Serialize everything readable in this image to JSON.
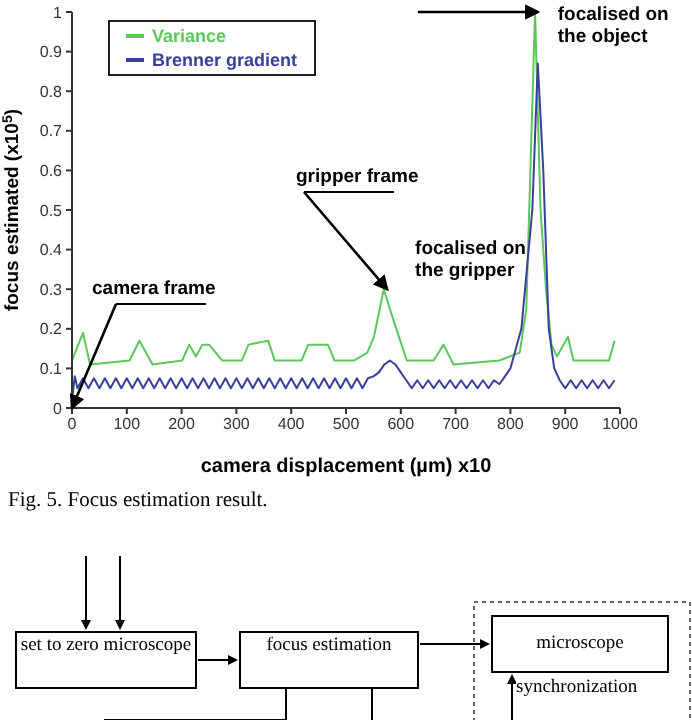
{
  "chart_data": {
    "type": "line",
    "xlabel": "camera displacement (µm) x10",
    "ylabel": "focus estimated (x10$^{5}$)",
    "xlim": [
      0,
      1000
    ],
    "xticks": [
      0,
      100,
      200,
      300,
      400,
      500,
      600,
      700,
      800,
      900,
      1000
    ],
    "ylim": [
      0,
      1
    ],
    "yticks": [
      0,
      0.1,
      0.2,
      0.3,
      0.4,
      0.5,
      0.6,
      0.7,
      0.8,
      0.9,
      1
    ],
    "legend": "top left",
    "marker": "none",
    "line_style": "solid",
    "series": [
      {
        "name": "Variance",
        "color": "#5cc85c",
        "x": [
          0,
          20,
          33,
          105,
          123,
          147,
          201,
          214,
          226,
          238,
          250,
          274,
          310,
          322,
          358,
          370,
          419,
          431,
          467,
          479,
          515,
          539,
          551,
          569,
          587,
          611,
          660,
          678,
          696,
          780,
          817,
          829,
          845,
          855,
          865,
          875,
          885,
          905,
          915,
          980,
          990
        ],
        "values": [
          0.12,
          0.19,
          0.11,
          0.12,
          0.17,
          0.11,
          0.12,
          0.16,
          0.13,
          0.16,
          0.16,
          0.12,
          0.12,
          0.16,
          0.17,
          0.12,
          0.12,
          0.16,
          0.16,
          0.12,
          0.12,
          0.14,
          0.18,
          0.3,
          0.22,
          0.12,
          0.12,
          0.16,
          0.11,
          0.12,
          0.14,
          0.25,
          1,
          0.5,
          0.3,
          0.16,
          0.13,
          0.18,
          0.12,
          0.12,
          0.17
        ]
      },
      {
        "name": "Brenner gradient",
        "color": "#3a3f9a",
        "x": [
          0,
          5,
          10,
          20,
          30,
          40,
          50,
          60,
          70,
          80,
          90,
          100,
          110,
          120,
          130,
          140,
          150,
          160,
          170,
          180,
          190,
          200,
          210,
          220,
          230,
          240,
          250,
          260,
          270,
          280,
          290,
          300,
          310,
          320,
          330,
          340,
          350,
          360,
          370,
          380,
          390,
          400,
          410,
          420,
          430,
          440,
          450,
          460,
          470,
          480,
          490,
          500,
          510,
          520,
          530,
          540,
          550,
          560,
          570,
          580,
          590,
          600,
          610,
          620,
          630,
          640,
          650,
          660,
          670,
          680,
          690,
          700,
          710,
          720,
          730,
          740,
          750,
          760,
          770,
          780,
          790,
          800,
          820,
          840,
          850,
          860,
          870,
          880,
          890,
          900,
          910,
          920,
          930,
          940,
          950,
          960,
          970,
          980,
          990
        ],
        "values": [
          0.02,
          0.08,
          0.05,
          0.075,
          0.05,
          0.075,
          0.05,
          0.075,
          0.05,
          0.075,
          0.05,
          0.075,
          0.05,
          0.075,
          0.05,
          0.075,
          0.05,
          0.075,
          0.05,
          0.075,
          0.05,
          0.075,
          0.05,
          0.075,
          0.05,
          0.075,
          0.05,
          0.075,
          0.05,
          0.075,
          0.05,
          0.075,
          0.05,
          0.075,
          0.05,
          0.075,
          0.05,
          0.075,
          0.05,
          0.075,
          0.05,
          0.075,
          0.05,
          0.075,
          0.05,
          0.075,
          0.05,
          0.075,
          0.05,
          0.075,
          0.05,
          0.075,
          0.05,
          0.075,
          0.05,
          0.075,
          0.08,
          0.09,
          0.11,
          0.12,
          0.11,
          0.09,
          0.07,
          0.05,
          0.07,
          0.05,
          0.07,
          0.05,
          0.07,
          0.05,
          0.07,
          0.05,
          0.07,
          0.05,
          0.07,
          0.05,
          0.07,
          0.05,
          0.07,
          0.06,
          0.08,
          0.1,
          0.2,
          0.5,
          0.87,
          0.6,
          0.2,
          0.1,
          0.07,
          0.05,
          0.07,
          0.05,
          0.07,
          0.05,
          0.07,
          0.05,
          0.07,
          0.05,
          0.07
        ]
      }
    ],
    "annotations": [
      {
        "text": "focalised on the object",
        "x": 850,
        "y": 1
      },
      {
        "text": "gripper frame",
        "x": 575,
        "y": 0.3
      },
      {
        "text": "focalised on the gripper",
        "x": 575,
        "y": 0.3
      },
      {
        "text": "camera frame",
        "x": 0,
        "y": 0
      },
      "Fig. 5. Focus estimation result.",
      "set to zero microscope",
      "focus estimation",
      "microscope",
      "synchronization"
    ]
  }
}
